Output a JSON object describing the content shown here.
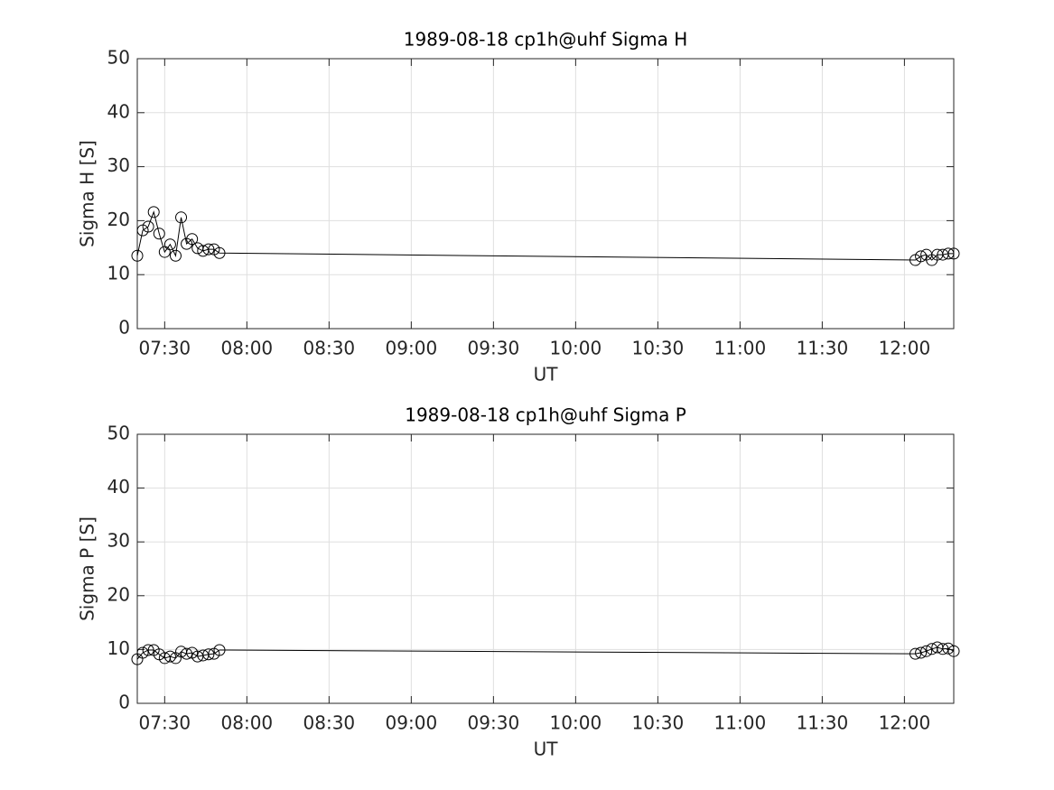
{
  "chart_data": [
    {
      "type": "line",
      "title": "1989-08-18  cp1h@uhf Sigma H",
      "xlabel": "UT",
      "ylabel": "Sigma H [S]",
      "x": [
        "07:20",
        "07:22",
        "07:24",
        "07:26",
        "07:28",
        "07:30",
        "07:32",
        "07:34",
        "07:36",
        "07:38",
        "07:40",
        "07:42",
        "07:44",
        "07:46",
        "07:48",
        "07:50",
        "12:04",
        "12:06",
        "12:08",
        "12:10",
        "12:12",
        "12:14",
        "12:16",
        "12:18"
      ],
      "values": [
        13.5,
        18.2,
        18.9,
        21.6,
        17.6,
        14.2,
        15.6,
        13.5,
        20.6,
        15.7,
        16.6,
        14.9,
        14.4,
        14.7,
        14.7,
        14.0,
        12.7,
        13.4,
        13.7,
        12.7,
        13.7,
        13.7,
        13.9,
        13.9
      ],
      "color": "#000000",
      "marker": "circle",
      "xlim": [
        "07:20",
        "12:18"
      ],
      "xticks": [
        "07:30",
        "08:00",
        "08:30",
        "09:00",
        "09:30",
        "10:00",
        "10:30",
        "11:00",
        "11:30",
        "12:00"
      ],
      "ylim": [
        0,
        50
      ],
      "yticks": [
        0,
        10,
        20,
        30,
        40,
        50
      ],
      "grid": true
    },
    {
      "type": "line",
      "title": "1989-08-18  cp1h@uhf Sigma P",
      "xlabel": "UT",
      "ylabel": "Sigma P [S]",
      "x": [
        "07:20",
        "07:22",
        "07:24",
        "07:26",
        "07:28",
        "07:30",
        "07:32",
        "07:34",
        "07:36",
        "07:38",
        "07:40",
        "07:42",
        "07:44",
        "07:46",
        "07:48",
        "07:50",
        "12:04",
        "12:06",
        "12:08",
        "12:10",
        "12:12",
        "12:14",
        "12:16",
        "12:18"
      ],
      "values": [
        8.2,
        9.4,
        9.9,
        9.9,
        9.1,
        8.4,
        8.7,
        8.4,
        9.6,
        9.2,
        9.4,
        8.7,
        8.9,
        9.1,
        9.2,
        9.9,
        9.2,
        9.4,
        9.7,
        10.1,
        10.4,
        10.1,
        10.2,
        9.7
      ],
      "color": "#000000",
      "marker": "circle",
      "xlim": [
        "07:20",
        "12:18"
      ],
      "xticks": [
        "07:30",
        "08:00",
        "08:30",
        "09:00",
        "09:30",
        "10:00",
        "10:30",
        "11:00",
        "11:30",
        "12:00"
      ],
      "ylim": [
        0,
        50
      ],
      "yticks": [
        0,
        10,
        20,
        30,
        40,
        50
      ],
      "grid": true
    }
  ]
}
